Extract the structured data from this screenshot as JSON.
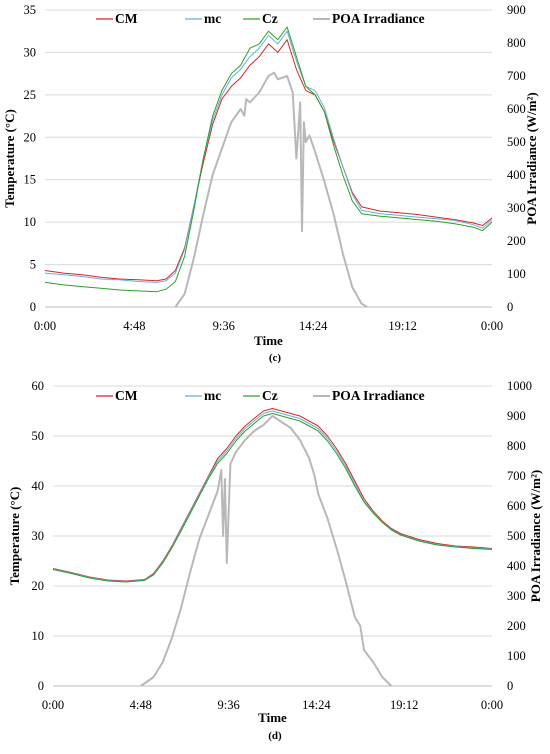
{
  "chart_data": [
    {
      "type": "line",
      "panel_label": "(c)",
      "xlabel": "Time",
      "ylabel": "Temperature (°C)",
      "y2label": "POA Irradiance (W/m²)",
      "x_ticks": [
        "0:00",
        "4:48",
        "9:36",
        "14:24",
        "19:12",
        "0:00"
      ],
      "xlim": [
        0,
        24
      ],
      "ylim": [
        0,
        35
      ],
      "y_ticks": [
        0,
        5,
        10,
        15,
        20,
        25,
        30,
        35
      ],
      "y2lim": [
        0,
        900
      ],
      "y2_ticks": [
        0,
        100,
        200,
        300,
        400,
        500,
        600,
        700,
        800,
        900
      ],
      "grid": "horizontal",
      "legend_position": "top",
      "x": [
        0,
        1,
        2,
        3,
        4,
        5,
        6,
        6.5,
        7,
        7.5,
        8,
        8.5,
        9,
        9.5,
        10,
        10.5,
        11,
        11.5,
        12,
        12.5,
        13,
        13.5,
        14,
        14.5,
        15,
        15.5,
        16,
        16.5,
        17,
        18,
        19,
        20,
        21,
        22,
        23,
        23.5,
        24
      ],
      "series": [
        {
          "name": "CM",
          "color": "#d62728",
          "axis": "left",
          "values": [
            4.3,
            4.0,
            3.8,
            3.5,
            3.3,
            3.2,
            3.1,
            3.3,
            4.3,
            7.0,
            12.0,
            17.0,
            21.5,
            24.5,
            26.0,
            27.0,
            28.5,
            29.5,
            31.0,
            30.0,
            31.5,
            28.0,
            25.5,
            25.0,
            23.0,
            19.5,
            16.5,
            13.5,
            11.8,
            11.3,
            11.1,
            10.9,
            10.6,
            10.3,
            9.9,
            9.6,
            10.5
          ]
        },
        {
          "name": "mc",
          "color": "#6baed6",
          "axis": "left",
          "values": [
            4.0,
            3.8,
            3.6,
            3.3,
            3.2,
            3.0,
            2.9,
            3.1,
            4.0,
            6.8,
            12.0,
            17.5,
            22.0,
            25.0,
            27.0,
            28.0,
            29.5,
            30.5,
            32.0,
            31.0,
            32.5,
            29.0,
            26.0,
            25.5,
            23.5,
            19.8,
            16.5,
            13.3,
            11.4,
            11.0,
            10.8,
            10.6,
            10.4,
            10.2,
            9.7,
            9.3,
            10.3
          ]
        },
        {
          "name": "Cz",
          "color": "#2ca02c",
          "axis": "left",
          "values": [
            2.9,
            2.6,
            2.4,
            2.2,
            2.0,
            1.9,
            1.8,
            2.1,
            3.0,
            6.0,
            11.5,
            17.5,
            22.5,
            25.5,
            27.5,
            28.5,
            30.5,
            31.0,
            32.5,
            31.5,
            33.0,
            29.5,
            26.0,
            25.0,
            23.0,
            19.0,
            15.5,
            12.5,
            11.0,
            10.7,
            10.5,
            10.3,
            10.1,
            9.8,
            9.4,
            9.0,
            10.0
          ]
        }
      ],
      "irradiance": {
        "name": "POA Irradiance",
        "color": "#b8b8b8",
        "axis": "right",
        "x": [
          7.0,
          7.5,
          8.0,
          8.5,
          9.0,
          9.5,
          10.0,
          10.5,
          10.7,
          10.8,
          11.0,
          11.5,
          12.0,
          12.3,
          12.5,
          13.0,
          13.3,
          13.5,
          13.7,
          13.8,
          13.9,
          14.0,
          14.2,
          14.5,
          15.0,
          15.5,
          16.0,
          16.3,
          16.5,
          17.0,
          17.3
        ],
        "values": [
          0,
          40,
          150,
          280,
          400,
          480,
          560,
          600,
          580,
          630,
          620,
          650,
          700,
          710,
          690,
          700,
          650,
          450,
          620,
          230,
          560,
          500,
          520,
          470,
          380,
          280,
          160,
          100,
          60,
          10,
          0
        ]
      }
    },
    {
      "type": "line",
      "panel_label": "(d)",
      "xlabel": "Time",
      "ylabel": "Temperature (°C)",
      "y2label": "POA Irradiance (W/m²)",
      "x_ticks": [
        "0:00",
        "4:48",
        "9:36",
        "14:24",
        "19:12",
        "0:00"
      ],
      "xlim": [
        0,
        24
      ],
      "ylim": [
        0,
        60
      ],
      "y_ticks": [
        0,
        10,
        20,
        30,
        40,
        50,
        60
      ],
      "y2lim": [
        0,
        1000
      ],
      "y2_ticks": [
        0,
        100,
        200,
        300,
        400,
        500,
        600,
        700,
        800,
        900,
        1000
      ],
      "grid": "horizontal",
      "legend_position": "top",
      "x": [
        0,
        1,
        2,
        3,
        4,
        5,
        5.5,
        6,
        6.5,
        7,
        7.5,
        8,
        8.5,
        9,
        9.5,
        10,
        10.5,
        11,
        11.5,
        12,
        12.5,
        13,
        13.5,
        14,
        14.5,
        15,
        15.5,
        16,
        16.5,
        17,
        17.5,
        18,
        18.5,
        19,
        20,
        21,
        22,
        23,
        24
      ],
      "series": [
        {
          "name": "CM",
          "color": "#d62728",
          "axis": "left",
          "values": [
            23.5,
            22.7,
            21.8,
            21.2,
            21.0,
            21.3,
            22.5,
            25.0,
            28.0,
            31.5,
            35.0,
            38.5,
            42.0,
            45.5,
            47.5,
            50.0,
            52.0,
            53.5,
            55.0,
            55.5,
            55.0,
            54.5,
            54.0,
            53.0,
            52.0,
            50.0,
            47.5,
            44.5,
            41.0,
            37.5,
            35.0,
            33.0,
            31.5,
            30.5,
            29.3,
            28.5,
            28.0,
            27.8,
            27.5
          ]
        },
        {
          "name": "mc",
          "color": "#6baed6",
          "axis": "left",
          "values": [
            23.4,
            22.6,
            21.7,
            21.1,
            20.9,
            21.2,
            22.3,
            24.8,
            27.8,
            31.3,
            34.8,
            38.3,
            41.8,
            45.0,
            47.0,
            49.5,
            51.5,
            53.0,
            54.5,
            55.0,
            54.5,
            54.0,
            53.5,
            52.5,
            51.5,
            49.5,
            47.0,
            44.0,
            40.5,
            37.0,
            34.8,
            32.8,
            31.3,
            30.3,
            29.1,
            28.3,
            27.9,
            27.6,
            27.4
          ]
        },
        {
          "name": "Cz",
          "color": "#2ca02c",
          "axis": "left",
          "values": [
            23.3,
            22.5,
            21.6,
            21.0,
            20.8,
            21.1,
            22.2,
            24.6,
            27.6,
            31.0,
            34.5,
            38.0,
            41.5,
            44.5,
            46.5,
            49.0,
            51.0,
            52.5,
            54.0,
            54.5,
            54.0,
            53.5,
            53.0,
            52.0,
            51.0,
            49.0,
            46.5,
            43.5,
            40.0,
            36.8,
            34.6,
            32.7,
            31.2,
            30.2,
            29.0,
            28.2,
            27.8,
            27.5,
            27.3
          ]
        }
      ],
      "irradiance": {
        "name": "POA Irradiance",
        "color": "#b8b8b8",
        "axis": "right",
        "x": [
          4.8,
          5.5,
          6.0,
          6.5,
          7.0,
          7.5,
          8.0,
          8.5,
          9.0,
          9.2,
          9.3,
          9.4,
          9.5,
          9.7,
          10.0,
          10.5,
          11.0,
          11.5,
          12.0,
          12.5,
          13.0,
          13.5,
          14.0,
          14.3,
          14.5,
          15.0,
          15.5,
          16.0,
          16.5,
          16.8,
          17.0,
          17.5,
          18.0,
          18.5
        ],
        "values": [
          0,
          30,
          80,
          160,
          260,
          380,
          490,
          570,
          650,
          720,
          500,
          690,
          410,
          740,
          780,
          820,
          850,
          870,
          900,
          880,
          860,
          820,
          760,
          700,
          640,
          560,
          460,
          350,
          230,
          200,
          120,
          80,
          30,
          0
        ]
      }
    }
  ]
}
